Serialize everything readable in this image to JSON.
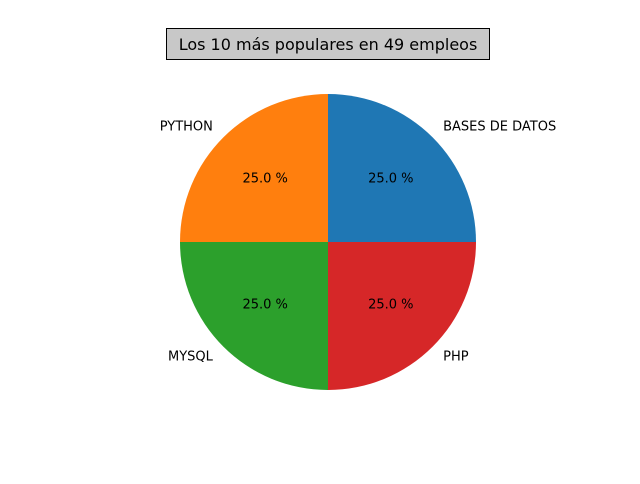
{
  "chart_data": {
    "type": "pie",
    "title": "Los 10 más populares en 49 empleos",
    "start_angle_deg": 0,
    "direction": "counterclockwise",
    "slices": [
      {
        "label": "BASES DE DATOS",
        "value": 25.0,
        "pct_label": "25.0 %",
        "color": "#1f77b4"
      },
      {
        "label": "PYTHON",
        "value": 25.0,
        "pct_label": "25.0 %",
        "color": "#ff7f0e"
      },
      {
        "label": "MYSQL",
        "value": 25.0,
        "pct_label": "25.0 %",
        "color": "#2ca02c"
      },
      {
        "label": "PHP",
        "value": 25.0,
        "pct_label": "25.0 %",
        "color": "#d62728"
      }
    ]
  }
}
